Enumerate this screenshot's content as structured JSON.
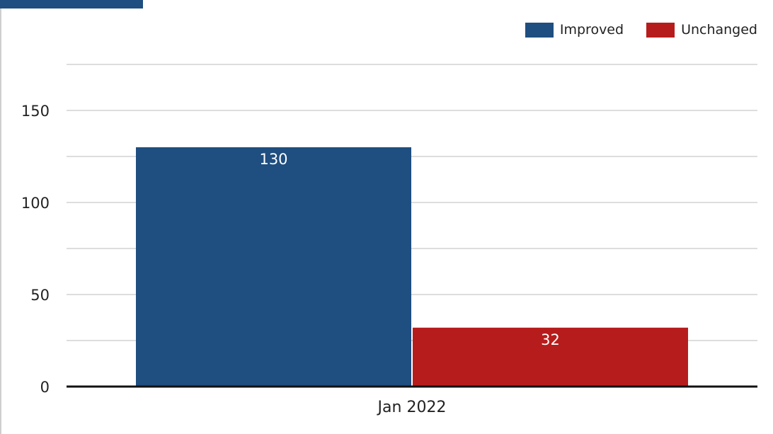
{
  "chart_data": {
    "type": "bar",
    "categories": [
      "Jan 2022"
    ],
    "series": [
      {
        "name": "Improved",
        "values": [
          130
        ],
        "color": "#1f4e80"
      },
      {
        "name": "Unchanged",
        "values": [
          32
        ],
        "color": "#b71c1c"
      }
    ],
    "ylim": [
      0,
      175
    ],
    "yticks": [
      0,
      50,
      100,
      150
    ],
    "grid": true,
    "legend_position": "top-right"
  }
}
